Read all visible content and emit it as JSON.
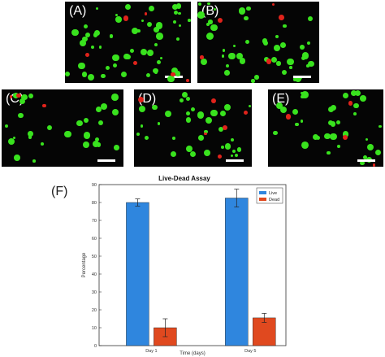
{
  "panels": [
    {
      "label": "(A)"
    },
    {
      "label": "(B)"
    },
    {
      "label": "(C)"
    },
    {
      "label": "(D)"
    },
    {
      "label": "(E)"
    }
  ],
  "figure_label_f": "(F)",
  "colors": {
    "live_cell": "#39e21e",
    "dead_cell": "#e0231b",
    "live_bar": "#2f86de",
    "dead_bar": "#e0491f",
    "panel_bg": "#050505"
  },
  "chart_data": {
    "type": "bar",
    "title": "Live-Dead Assay",
    "xlabel": "Time (days)",
    "ylabel": "Percentage",
    "categories": [
      "Day 1",
      "Day 5"
    ],
    "series": [
      {
        "name": "Live",
        "values": [
          80,
          82.5
        ],
        "error": [
          2,
          5
        ]
      },
      {
        "name": "Dead",
        "values": [
          10,
          15.5
        ],
        "error": [
          5,
          2.5
        ]
      }
    ],
    "ylim": [
      0,
      90
    ],
    "yticks": [
      "0",
      "10",
      "20",
      "30",
      "40",
      "50",
      "60",
      "70",
      "80",
      "90"
    ],
    "legend_position": "top-right",
    "grid": false
  }
}
